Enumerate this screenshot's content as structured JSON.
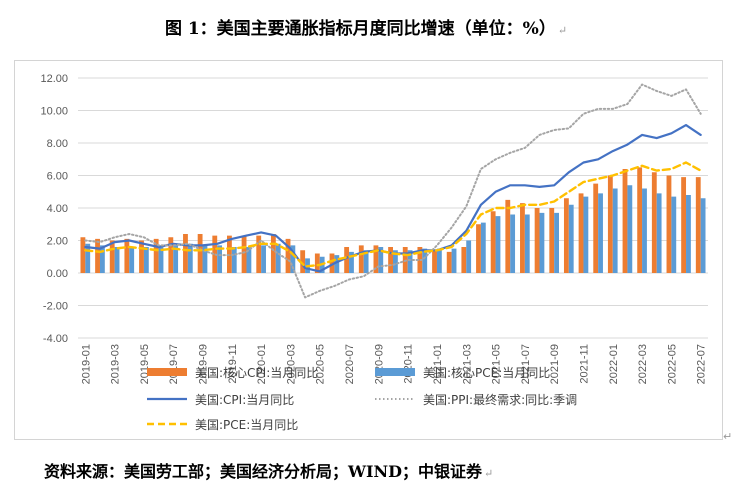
{
  "title": "图 1：美国主要通胀指标月度同比增速（单位：%）",
  "source": "资料来源：美国劳工部；美国经济分析局；WIND；中银证券",
  "paragraph_mark": "↵",
  "colors": {
    "core_cpi": "#ED7D31",
    "core_pce": "#5B9BD5",
    "cpi": "#4472C4",
    "ppi": "#A5A5A5",
    "pce": "#FFC000",
    "grid": "#d9d9d9",
    "axis_text": "#595959"
  },
  "chart_data": {
    "type": "bar",
    "ylim": [
      -4,
      12
    ],
    "y_ticks": [
      "-4.00",
      "-2.00",
      "0.00",
      "2.00",
      "4.00",
      "6.00",
      "8.00",
      "10.00",
      "12.00"
    ],
    "y_tick_values": [
      -4,
      -2,
      0,
      2,
      4,
      6,
      8,
      10,
      12
    ],
    "grid": true,
    "legend_position": "bottom",
    "categories": [
      "2019-01",
      "2019-02",
      "2019-03",
      "2019-04",
      "2019-05",
      "2019-06",
      "2019-07",
      "2019-08",
      "2019-09",
      "2019-10",
      "2019-11",
      "2019-12",
      "2020-01",
      "2020-02",
      "2020-03",
      "2020-04",
      "2020-05",
      "2020-06",
      "2020-07",
      "2020-08",
      "2020-09",
      "2020-10",
      "2020-11",
      "2020-12",
      "2021-01",
      "2021-02",
      "2021-03",
      "2021-04",
      "2021-05",
      "2021-06",
      "2021-07",
      "2021-08",
      "2021-09",
      "2021-10",
      "2021-11",
      "2021-12",
      "2022-01",
      "2022-02",
      "2022-03",
      "2022-04",
      "2022-05",
      "2022-06",
      "2022-07"
    ],
    "x_tick_labels": [
      "2019-01",
      "2019-03",
      "2019-05",
      "2019-07",
      "2019-09",
      "2019-11",
      "2020-01",
      "2020-03",
      "2020-05",
      "2020-07",
      "2020-09",
      "2020-11",
      "2021-01",
      "2021-03",
      "2021-05",
      "2021-07",
      "2021-09",
      "2021-11",
      "2022-01",
      "2022-03",
      "2022-05",
      "2022-07"
    ],
    "series": [
      {
        "name": "美国:核心CPI:当月同比",
        "kind": "bar",
        "color_key": "core_cpi",
        "values": [
          2.2,
          2.1,
          2.0,
          2.1,
          2.0,
          2.1,
          2.2,
          2.4,
          2.4,
          2.3,
          2.3,
          2.3,
          2.3,
          2.4,
          2.1,
          1.4,
          1.2,
          1.2,
          1.6,
          1.7,
          1.7,
          1.6,
          1.6,
          1.6,
          1.4,
          1.3,
          1.6,
          3.0,
          3.8,
          4.5,
          4.3,
          4.0,
          4.0,
          4.6,
          4.9,
          5.5,
          6.0,
          6.4,
          6.5,
          6.2,
          6.0,
          5.9,
          5.9
        ]
      },
      {
        "name": "美国:核心PCE:当月同比",
        "kind": "bar",
        "color_key": "core_pce",
        "values": [
          1.8,
          1.7,
          1.6,
          1.6,
          1.6,
          1.7,
          1.7,
          1.8,
          1.7,
          1.7,
          1.6,
          1.6,
          1.7,
          1.8,
          1.7,
          0.9,
          1.0,
          1.1,
          1.3,
          1.4,
          1.6,
          1.4,
          1.4,
          1.5,
          1.5,
          1.5,
          2.0,
          3.1,
          3.5,
          3.6,
          3.6,
          3.7,
          3.7,
          4.2,
          4.7,
          4.9,
          5.2,
          5.4,
          5.2,
          4.9,
          4.7,
          4.8,
          4.6
        ]
      },
      {
        "name": "美国:CPI:当月同比",
        "kind": "line",
        "color_key": "cpi",
        "values": [
          1.6,
          1.5,
          1.9,
          2.0,
          1.8,
          1.6,
          1.8,
          1.7,
          1.7,
          1.8,
          2.1,
          2.3,
          2.5,
          2.3,
          1.5,
          0.3,
          0.1,
          0.6,
          1.0,
          1.3,
          1.4,
          1.2,
          1.2,
          1.4,
          1.4,
          1.7,
          2.6,
          4.2,
          5.0,
          5.4,
          5.4,
          5.3,
          5.4,
          6.2,
          6.8,
          7.0,
          7.5,
          7.9,
          8.5,
          8.3,
          8.6,
          9.1,
          8.5
        ]
      },
      {
        "name": "美国:PPI:最终需求:同比:季调",
        "kind": "line",
        "color_key": "ppi",
        "values": [
          2.0,
          1.9,
          2.2,
          2.4,
          2.2,
          1.7,
          1.7,
          1.8,
          1.4,
          1.1,
          1.1,
          1.3,
          2.0,
          1.3,
          0.7,
          -1.5,
          -1.1,
          -0.8,
          -0.4,
          -0.2,
          0.4,
          0.5,
          0.8,
          0.8,
          1.7,
          2.8,
          4.1,
          6.4,
          7.0,
          7.4,
          7.7,
          8.5,
          8.8,
          8.9,
          9.8,
          10.1,
          10.1,
          10.4,
          11.6,
          11.2,
          10.9,
          11.3,
          9.8
        ]
      },
      {
        "name": "美国:PCE:当月同比",
        "kind": "line",
        "color_key": "pce",
        "values": [
          1.4,
          1.3,
          1.5,
          1.6,
          1.5,
          1.4,
          1.5,
          1.4,
          1.4,
          1.5,
          1.5,
          1.6,
          1.8,
          1.8,
          1.3,
          0.4,
          0.5,
          0.8,
          1.0,
          1.2,
          1.4,
          1.2,
          1.1,
          1.3,
          1.4,
          1.6,
          2.4,
          3.6,
          4.0,
          4.0,
          4.2,
          4.2,
          4.4,
          5.0,
          5.6,
          5.8,
          6.0,
          6.3,
          6.6,
          6.3,
          6.4,
          6.8,
          6.3
        ]
      }
    ]
  }
}
